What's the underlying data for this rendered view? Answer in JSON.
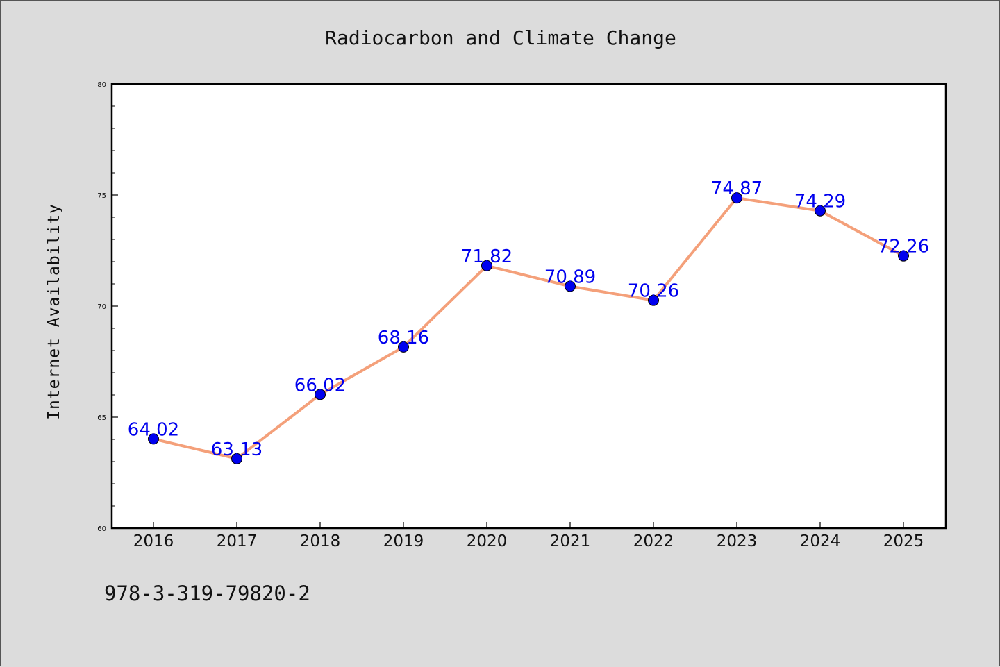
{
  "chart_data": {
    "type": "line",
    "title": "Radiocarbon and Climate Change",
    "xlabel": "",
    "ylabel": "Internet Availability",
    "categories": [
      "2016",
      "2017",
      "2018",
      "2019",
      "2020",
      "2021",
      "2022",
      "2023",
      "2024",
      "2025"
    ],
    "series": [
      {
        "values": [
          64.02,
          63.13,
          66.02,
          68.16,
          71.82,
          70.89,
          70.26,
          74.87,
          74.29,
          72.26
        ],
        "line_color": "#f4a07a",
        "marker_color": "#0000ee"
      }
    ],
    "data_labels": [
      "64.02",
      "63.13",
      "66.02",
      "68.16",
      "71.82",
      "70.89",
      "70.26",
      "74.87",
      "74.29",
      "72.26"
    ],
    "ylim": [
      60,
      80
    ],
    "yticks": [
      "60",
      "65",
      "70",
      "75",
      "80"
    ],
    "grid": false,
    "legend": "none"
  },
  "footer": {
    "isbn": "978-3-319-79820-2"
  }
}
